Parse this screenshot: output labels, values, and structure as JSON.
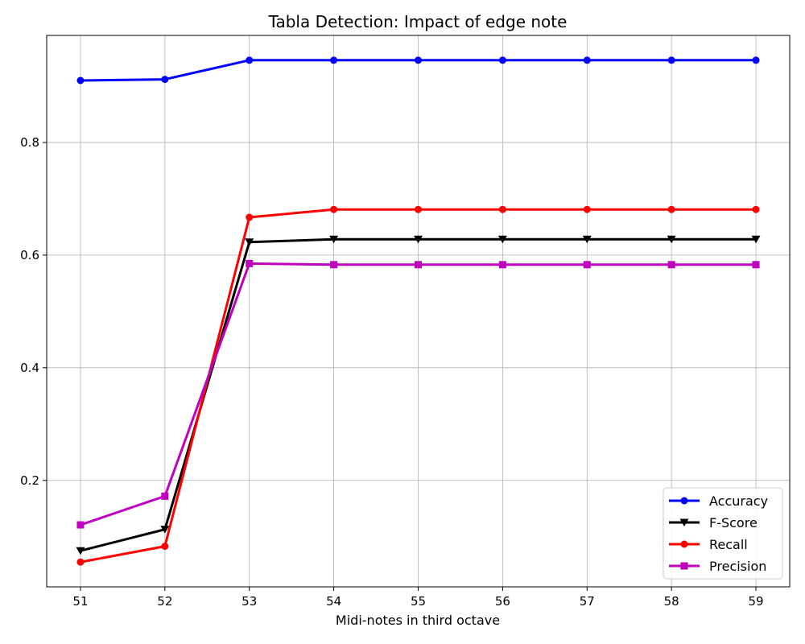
{
  "chart_data": {
    "type": "line",
    "title": "Tabla Detection: Impact of edge note",
    "xlabel": "Midi-notes in third octave",
    "ylabel": "",
    "x": [
      51,
      52,
      53,
      54,
      55,
      56,
      57,
      58,
      59
    ],
    "xlim": [
      50.6,
      59.4
    ],
    "ylim": [
      0.011,
      0.99
    ],
    "xticks": [
      51,
      52,
      53,
      54,
      55,
      56,
      57,
      58,
      59
    ],
    "yticks": [
      0.2,
      0.4,
      0.6,
      0.8
    ],
    "grid": true,
    "legend_position": "lower-right",
    "series": [
      {
        "name": "Accuracy",
        "color": "#0000ff",
        "marker": "circle",
        "values": [
          0.91,
          0.912,
          0.946,
          0.946,
          0.946,
          0.946,
          0.946,
          0.946,
          0.946
        ]
      },
      {
        "name": "F-Score",
        "color": "#000000",
        "marker": "triangle-down",
        "values": [
          0.075,
          0.113,
          0.623,
          0.628,
          0.628,
          0.628,
          0.628,
          0.628,
          0.628
        ]
      },
      {
        "name": "Recall",
        "color": "#ff0000",
        "marker": "circle",
        "values": [
          0.055,
          0.083,
          0.667,
          0.681,
          0.681,
          0.681,
          0.681,
          0.681,
          0.681
        ]
      },
      {
        "name": "Precision",
        "color": "#bf00bf",
        "marker": "square",
        "values": [
          0.121,
          0.172,
          0.585,
          0.583,
          0.583,
          0.583,
          0.583,
          0.583,
          0.583
        ]
      }
    ]
  }
}
